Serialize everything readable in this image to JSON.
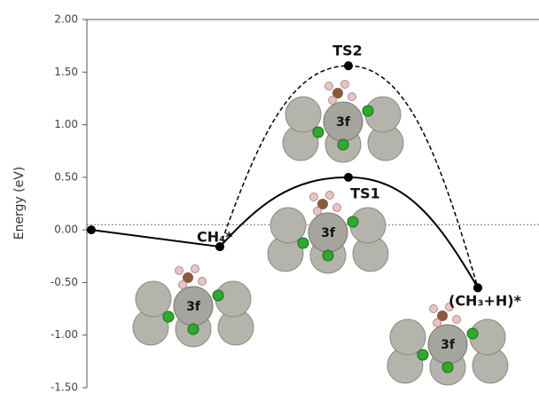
{
  "chart_data": {
    "type": "line",
    "y_label": "Energy (eV)",
    "categories": [
      null,
      null,
      null,
      null
    ],
    "series": [
      {
        "color": "#000000",
        "dash": "solid",
        "values": [
          0.0,
          -0.16,
          0.5,
          -0.55
        ]
      },
      {
        "color": "#000000",
        "dash": "dashed",
        "values": [
          null,
          -0.16,
          1.56,
          -0.55
        ]
      }
    ],
    "point_labels": [
      "CH₄*",
      "TS1",
      "TS2",
      "(CH₃+H)*"
    ],
    "structure_labels": [
      "3f",
      "3f",
      "3f",
      "3f"
    ],
    "reference_line": 0.05,
    "ylim": [
      -1.5,
      2.0
    ],
    "yticks": [
      {
        "value": 2.0,
        "label": "2.00"
      },
      {
        "value": 1.5,
        "label": "1.50"
      },
      {
        "value": 1.0,
        "label": "1.00"
      },
      {
        "value": 0.5,
        "label": "0.50"
      },
      {
        "value": 0.0,
        "label": "0.00"
      },
      {
        "value": -0.5,
        "label": "-0.50"
      },
      {
        "value": -1.0,
        "label": "-1.00"
      },
      {
        "value": -1.5,
        "label": "-1.50"
      }
    ]
  }
}
